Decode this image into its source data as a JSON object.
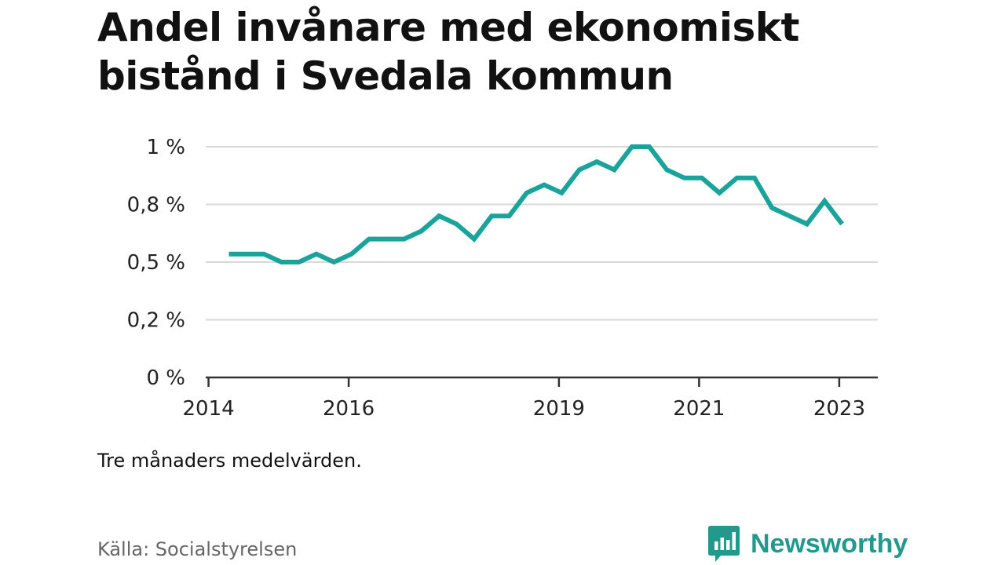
{
  "header": {
    "title_line1": "Andel invånare med ekonomiskt",
    "title_line2": "bistånd i Svedala kommun"
  },
  "note": "Tre månaders medelvärden.",
  "source": "Källa: Socialstyrelsen",
  "brand": {
    "name": "Newsworthy",
    "icon": "bar-chart-speech-bubble-icon",
    "color": "#23998e"
  },
  "colors": {
    "line": "#1aa39a",
    "grid": "#d9d9d9",
    "axis": "#333333"
  },
  "chart_data": {
    "type": "line",
    "title": "Andel invånare med ekonomiskt bistånd i Svedala kommun",
    "xlabel": "",
    "ylabel": "",
    "xlim": [
      2013.96,
      2023.55
    ],
    "ylim": [
      0,
      1.0
    ],
    "x_ticks": [
      {
        "value": 2014,
        "label": "2014"
      },
      {
        "value": 2016,
        "label": "2016"
      },
      {
        "value": 2019,
        "label": "2019"
      },
      {
        "value": 2021,
        "label": "2021"
      },
      {
        "value": 2023,
        "label": "2023"
      }
    ],
    "y_ticks": [
      {
        "value": 0,
        "label": "0 %"
      },
      {
        "value": 0.25,
        "label": "0,2 %"
      },
      {
        "value": 0.5,
        "label": "0,5 %"
      },
      {
        "value": 0.75,
        "label": "0,8 %"
      },
      {
        "value": 1.0,
        "label": "1 %"
      }
    ],
    "grid": true,
    "series": [
      {
        "x": [
          2014.29,
          2014.54,
          2014.79,
          2015.04,
          2015.29,
          2015.54,
          2015.79,
          2016.04,
          2016.29,
          2016.54,
          2016.79,
          2017.04,
          2017.29,
          2017.54,
          2017.79,
          2018.04,
          2018.29,
          2018.54,
          2018.79,
          2019.04,
          2019.29,
          2019.54,
          2019.79,
          2020.04,
          2020.29,
          2020.54,
          2020.79,
          2021.04,
          2021.29,
          2021.54,
          2021.79,
          2022.04,
          2022.29,
          2022.54,
          2022.79,
          2023.04
        ],
        "y": [
          0.535,
          0.535,
          0.535,
          0.5,
          0.5,
          0.535,
          0.5,
          0.535,
          0.6,
          0.6,
          0.6,
          0.635,
          0.7,
          0.665,
          0.6,
          0.7,
          0.7,
          0.8,
          0.835,
          0.8,
          0.9,
          0.935,
          0.9,
          1.0,
          1.0,
          0.9,
          0.865,
          0.865,
          0.8,
          0.865,
          0.865,
          0.735,
          0.7,
          0.665,
          0.765,
          0.665
        ]
      }
    ]
  }
}
